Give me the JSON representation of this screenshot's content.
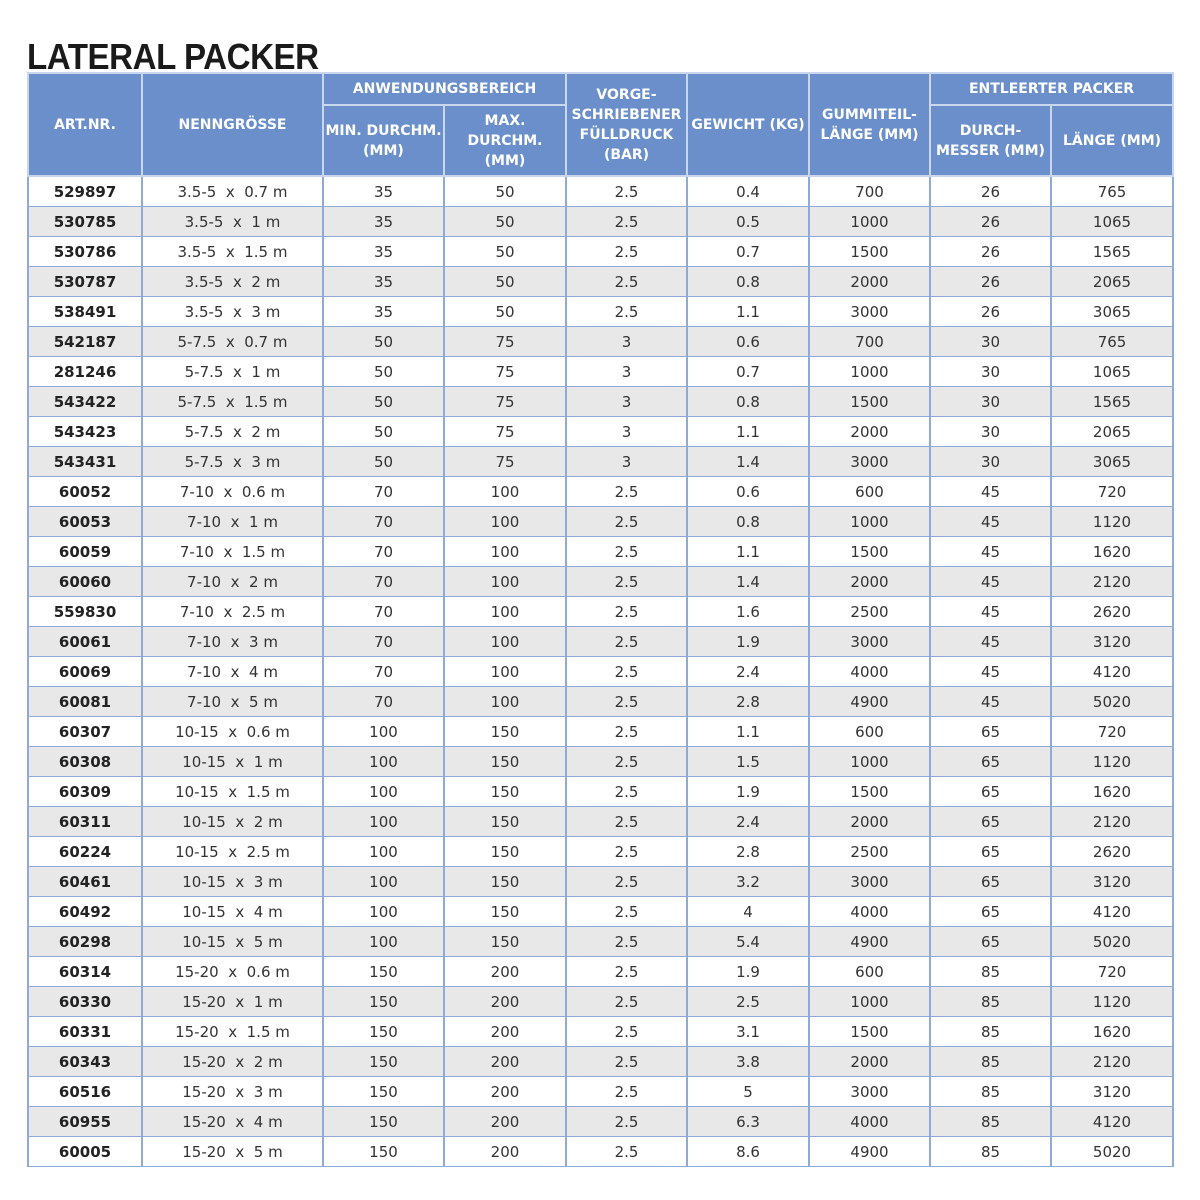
{
  "title": "LATERAL PACKER",
  "header": {
    "art": "ART.NR.",
    "nenn": "NENNGRÖSSE",
    "anw": "ANWENDUNGSBEREICH",
    "min": "MIN. DURCHM. (MM)",
    "max": "MAX. DURCHM. (MM)",
    "druck": "VORGE- SCHRIEBENER FÜLLDRUCK (BAR)",
    "gewicht": "GEWICHT (KG)",
    "gummi": "GUMMITEIL- LÄNGE (MM)",
    "entl": "ENTLEERTER PACKER",
    "durch": "DURCH- MESSER (MM)",
    "laenge": "LÄNGE (MM)"
  },
  "rows": [
    [
      "529897",
      "3.5-5",
      "0.7 m",
      "35",
      "50",
      "2.5",
      "0.4",
      "700",
      "26",
      "765"
    ],
    [
      "530785",
      "3.5-5",
      "1 m",
      "35",
      "50",
      "2.5",
      "0.5",
      "1000",
      "26",
      "1065"
    ],
    [
      "530786",
      "3.5-5",
      "1.5 m",
      "35",
      "50",
      "2.5",
      "0.7",
      "1500",
      "26",
      "1565"
    ],
    [
      "530787",
      "3.5-5",
      "2 m",
      "35",
      "50",
      "2.5",
      "0.8",
      "2000",
      "26",
      "2065"
    ],
    [
      "538491",
      "3.5-5",
      "3 m",
      "35",
      "50",
      "2.5",
      "1.1",
      "3000",
      "26",
      "3065"
    ],
    [
      "542187",
      "5-7.5",
      "0.7 m",
      "50",
      "75",
      "3",
      "0.6",
      "700",
      "30",
      "765"
    ],
    [
      "281246",
      "5-7.5",
      "1 m",
      "50",
      "75",
      "3",
      "0.7",
      "1000",
      "30",
      "1065"
    ],
    [
      "543422",
      "5-7.5",
      "1.5 m",
      "50",
      "75",
      "3",
      "0.8",
      "1500",
      "30",
      "1565"
    ],
    [
      "543423",
      "5-7.5",
      "2 m",
      "50",
      "75",
      "3",
      "1.1",
      "2000",
      "30",
      "2065"
    ],
    [
      "543431",
      "5-7.5",
      "3 m",
      "50",
      "75",
      "3",
      "1.4",
      "3000",
      "30",
      "3065"
    ],
    [
      "60052",
      "7-10",
      "0.6 m",
      "70",
      "100",
      "2.5",
      "0.6",
      "600",
      "45",
      "720"
    ],
    [
      "60053",
      "7-10",
      "1 m",
      "70",
      "100",
      "2.5",
      "0.8",
      "1000",
      "45",
      "1120"
    ],
    [
      "60059",
      "7-10",
      "1.5 m",
      "70",
      "100",
      "2.5",
      "1.1",
      "1500",
      "45",
      "1620"
    ],
    [
      "60060",
      "7-10",
      "2 m",
      "70",
      "100",
      "2.5",
      "1.4",
      "2000",
      "45",
      "2120"
    ],
    [
      "559830",
      "7-10",
      "2.5 m",
      "70",
      "100",
      "2.5",
      "1.6",
      "2500",
      "45",
      "2620"
    ],
    [
      "60061",
      "7-10",
      "3 m",
      "70",
      "100",
      "2.5",
      "1.9",
      "3000",
      "45",
      "3120"
    ],
    [
      "60069",
      "7-10",
      "4 m",
      "70",
      "100",
      "2.5",
      "2.4",
      "4000",
      "45",
      "4120"
    ],
    [
      "60081",
      "7-10",
      "5 m",
      "70",
      "100",
      "2.5",
      "2.8",
      "4900",
      "45",
      "5020"
    ],
    [
      "60307",
      "10-15",
      "0.6 m",
      "100",
      "150",
      "2.5",
      "1.1",
      "600",
      "65",
      "720"
    ],
    [
      "60308",
      "10-15",
      "1 m",
      "100",
      "150",
      "2.5",
      "1.5",
      "1000",
      "65",
      "1120"
    ],
    [
      "60309",
      "10-15",
      "1.5 m",
      "100",
      "150",
      "2.5",
      "1.9",
      "1500",
      "65",
      "1620"
    ],
    [
      "60311",
      "10-15",
      "2 m",
      "100",
      "150",
      "2.5",
      "2.4",
      "2000",
      "65",
      "2120"
    ],
    [
      "60224",
      "10-15",
      "2.5 m",
      "100",
      "150",
      "2.5",
      "2.8",
      "2500",
      "65",
      "2620"
    ],
    [
      "60461",
      "10-15",
      "3 m",
      "100",
      "150",
      "2.5",
      "3.2",
      "3000",
      "65",
      "3120"
    ],
    [
      "60492",
      "10-15",
      "4 m",
      "100",
      "150",
      "2.5",
      "4",
      "4000",
      "65",
      "4120"
    ],
    [
      "60298",
      "10-15",
      "5 m",
      "100",
      "150",
      "2.5",
      "5.4",
      "4900",
      "65",
      "5020"
    ],
    [
      "60314",
      "15-20",
      "0.6 m",
      "150",
      "200",
      "2.5",
      "1.9",
      "600",
      "85",
      "720"
    ],
    [
      "60330",
      "15-20",
      "1 m",
      "150",
      "200",
      "2.5",
      "2.5",
      "1000",
      "85",
      "1120"
    ],
    [
      "60331",
      "15-20",
      "1.5 m",
      "150",
      "200",
      "2.5",
      "3.1",
      "1500",
      "85",
      "1620"
    ],
    [
      "60343",
      "15-20",
      "2 m",
      "150",
      "200",
      "2.5",
      "3.8",
      "2000",
      "85",
      "2120"
    ],
    [
      "60516",
      "15-20",
      "3 m",
      "150",
      "200",
      "2.5",
      "5",
      "3000",
      "85",
      "3120"
    ],
    [
      "60955",
      "15-20",
      "4 m",
      "150",
      "200",
      "2.5",
      "6.3",
      "4000",
      "85",
      "4120"
    ],
    [
      "60005",
      "15-20",
      "5 m",
      "150",
      "200",
      "2.5",
      "8.6",
      "4900",
      "85",
      "5020"
    ]
  ]
}
